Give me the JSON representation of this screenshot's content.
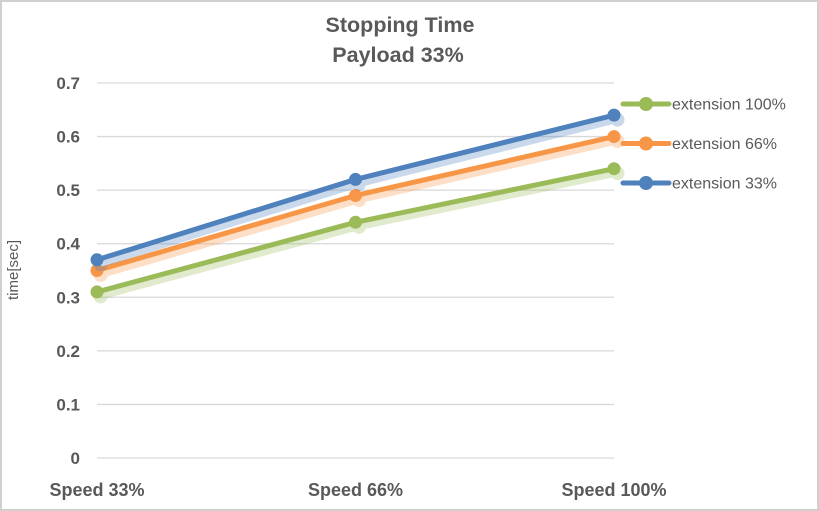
{
  "chart_data": {
    "type": "line",
    "title": "Stopping Time",
    "subtitle": "Payload 33%",
    "categories": [
      "Speed 33%",
      "Speed 66%",
      "Speed 100%"
    ],
    "series": [
      {
        "name": "extension 100%",
        "color": "#9BBB59",
        "values": [
          0.31,
          0.44,
          0.54
        ]
      },
      {
        "name": "extension 66%",
        "color": "#F79646",
        "values": [
          0.35,
          0.49,
          0.6
        ]
      },
      {
        "name": "extension 33%",
        "color": "#4F81BD",
        "values": [
          0.37,
          0.52,
          0.64
        ]
      }
    ],
    "xlabel": "",
    "ylabel": "time[sec]",
    "ylim": [
      0,
      0.7
    ],
    "y_tick_step": 0.1,
    "y_tick_labels": [
      "0",
      "0.1",
      "0.2",
      "0.3",
      "0.4",
      "0.5",
      "0.6",
      "0.7"
    ],
    "grid": true,
    "legend_position": "right",
    "line_shadow": true,
    "markers": "circle"
  },
  "style": {
    "text_color": "#595959",
    "gridline_color": "#D9D9D9",
    "background": "#FFFFFF",
    "border_color": "#D2CFCF"
  }
}
